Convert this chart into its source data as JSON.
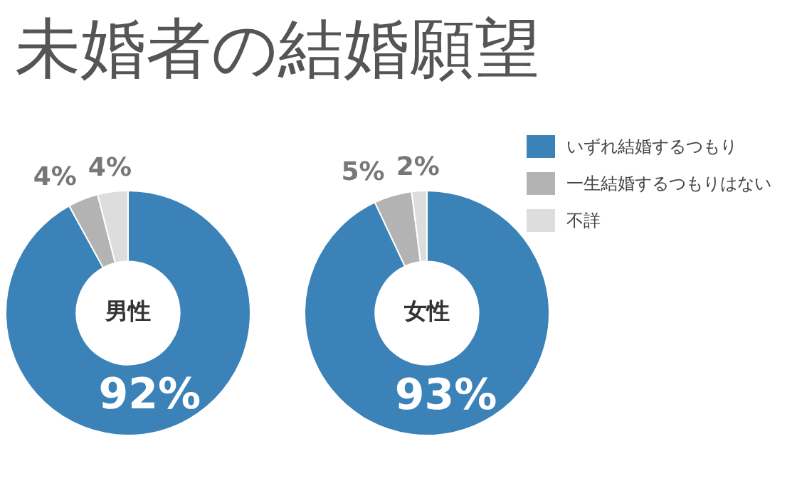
{
  "chart_data": [
    {
      "type": "other",
      "title": "未婚者の結婚願望"
    },
    {
      "type": "donut",
      "title": "男性",
      "categories": [
        null,
        null,
        null
      ],
      "values": [
        92,
        4,
        4
      ],
      "colors": [
        "#3a82b8",
        "#b3b3b3",
        "#dddddd"
      ],
      "value_labels": [
        "92%",
        "4%",
        "4%"
      ],
      "legend": false
    },
    {
      "type": "donut",
      "title": "女性",
      "categories": [
        "いずれ結婚するつもり",
        "一生結婚するつもりはない",
        "不詳"
      ],
      "values": [
        93,
        5,
        2
      ],
      "colors": [
        "#3a82b8",
        "#b3b3b3",
        "#dddddd"
      ],
      "value_labels": [
        "93%",
        "5%",
        "2%"
      ],
      "legend": "right"
    }
  ]
}
